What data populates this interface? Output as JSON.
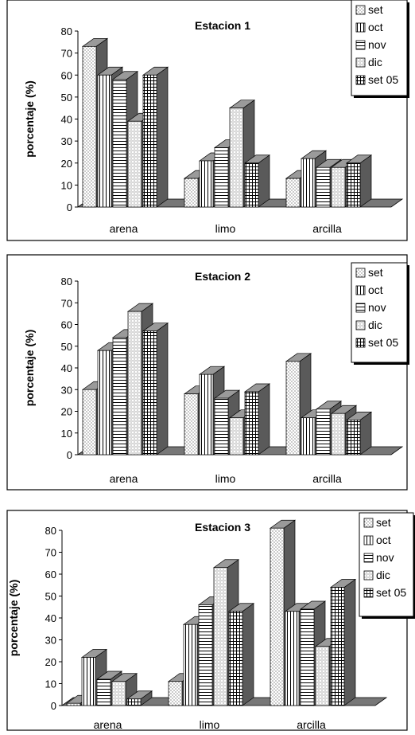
{
  "chart_data": [
    {
      "type": "bar",
      "title": "Estacion 1",
      "ylabel": "porcentaje (%)",
      "xlabel": "",
      "ylim": [
        0,
        80
      ],
      "yticks": [
        "0",
        "10",
        "20",
        "30",
        "40",
        "50",
        "60",
        "70",
        "80"
      ],
      "categories": [
        "arena",
        "limo",
        "arcilla"
      ],
      "series": [
        {
          "name": "set",
          "pattern": "dots",
          "values": [
            73,
            13,
            13
          ]
        },
        {
          "name": "oct",
          "pattern": "vlines",
          "values": [
            60,
            21,
            22
          ]
        },
        {
          "name": "nov",
          "pattern": "hlines",
          "values": [
            58,
            27,
            18
          ]
        },
        {
          "name": "dic",
          "pattern": "check",
          "values": [
            39,
            45,
            18
          ]
        },
        {
          "name": "set 05",
          "pattern": "grid",
          "values": [
            60,
            20,
            20
          ]
        }
      ],
      "legend": "top-right",
      "grid": false
    },
    {
      "type": "bar",
      "title": "Estacion 2",
      "ylabel": "porcentaje (%)",
      "xlabel": "",
      "ylim": [
        0,
        80
      ],
      "yticks": [
        "0",
        "10",
        "20",
        "30",
        "40",
        "50",
        "60",
        "70",
        "80"
      ],
      "categories": [
        "arena",
        "limo",
        "arcilla"
      ],
      "series": [
        {
          "name": "set",
          "pattern": "dots",
          "values": [
            30,
            28,
            43
          ]
        },
        {
          "name": "oct",
          "pattern": "vlines",
          "values": [
            48,
            37,
            17
          ]
        },
        {
          "name": "nov",
          "pattern": "hlines",
          "values": [
            54,
            26,
            21
          ]
        },
        {
          "name": "dic",
          "pattern": "check",
          "values": [
            66,
            17,
            19
          ]
        },
        {
          "name": "set 05",
          "pattern": "grid",
          "values": [
            57,
            29,
            16
          ]
        }
      ],
      "legend": "top-right",
      "grid": false
    },
    {
      "type": "bar",
      "title": "Estacion 3",
      "ylabel": "porcentaje (%)",
      "xlabel": "",
      "ylim": [
        0,
        80
      ],
      "yticks": [
        "0",
        "10",
        "20",
        "30",
        "40",
        "50",
        "60",
        "70",
        "80"
      ],
      "categories": [
        "arena",
        "limo",
        "arcilla"
      ],
      "series": [
        {
          "name": "set",
          "pattern": "dots",
          "values": [
            1,
            11,
            81
          ]
        },
        {
          "name": "oct",
          "pattern": "vlines",
          "values": [
            22,
            37,
            43
          ]
        },
        {
          "name": "nov",
          "pattern": "hlines",
          "values": [
            12,
            46,
            44
          ]
        },
        {
          "name": "dic",
          "pattern": "check",
          "values": [
            11,
            63,
            27
          ]
        },
        {
          "name": "set 05",
          "pattern": "grid",
          "values": [
            3,
            43,
            54
          ]
        }
      ],
      "legend": "top-right",
      "grid": false
    }
  ]
}
